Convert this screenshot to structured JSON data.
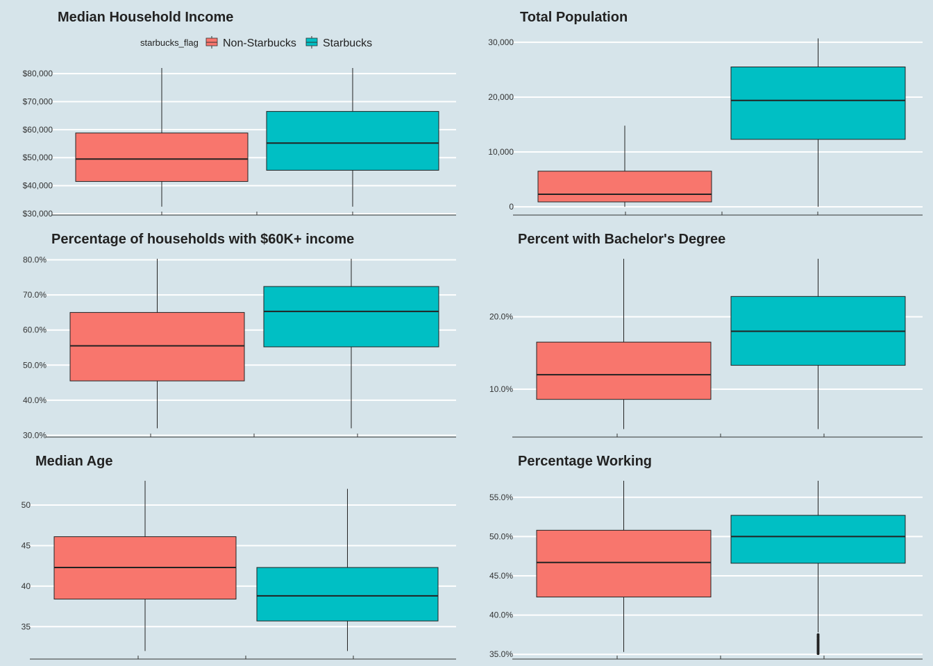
{
  "colors": {
    "non_starbucks": "#f8766d",
    "starbucks": "#00bfc4",
    "background": "#d6e4ea",
    "grid": "#ffffff"
  },
  "legend": {
    "title": "starbucks_flag",
    "entries": [
      {
        "label": "Non-Starbucks",
        "color": "#f8766d"
      },
      {
        "label": "Starbucks",
        "color": "#00bfc4"
      }
    ]
  },
  "chart_data": [
    {
      "type": "boxplot",
      "title": "Median Household Income",
      "legend": "top",
      "grid": true,
      "ylim": [
        29500,
        83000
      ],
      "ticks": [
        30000,
        40000,
        50000,
        60000,
        70000,
        80000
      ],
      "tick_labels": [
        "$30,000",
        "$40,000",
        "$50,000",
        "$60,000",
        "$70,000",
        "$80,000"
      ],
      "groups": [
        {
          "name": "Non-Starbucks",
          "whisker_low": 32500,
          "q1": 41500,
          "median": 49500,
          "q3": 58800,
          "whisker_high": 82000
        },
        {
          "name": "Starbucks",
          "whisker_low": 32500,
          "q1": 45500,
          "median": 55200,
          "q3": 66500,
          "whisker_high": 82000
        }
      ]
    },
    {
      "type": "boxplot",
      "title": "Total Population",
      "grid": true,
      "ylim": [
        -1500,
        31000
      ],
      "ticks": [
        0,
        10000,
        20000,
        30000
      ],
      "tick_labels": [
        "0",
        "10,000",
        "20,000",
        "30,000"
      ],
      "groups": [
        {
          "name": "Non-Starbucks",
          "whisker_low": 0,
          "q1": 900,
          "median": 2300,
          "q3": 6500,
          "whisker_high": 14800
        },
        {
          "name": "Starbucks",
          "whisker_low": 0,
          "q1": 12300,
          "median": 19400,
          "q3": 25500,
          "whisker_high": 30700
        }
      ]
    },
    {
      "type": "boxplot",
      "title": "Percentage of households with $60K+ income",
      "grid": true,
      "ylim": [
        29.5,
        80.3
      ],
      "ticks": [
        30,
        40,
        50,
        60,
        70,
        80
      ],
      "tick_labels": [
        "30.0%",
        "40.0%",
        "50.0%",
        "60.0%",
        "70.0%",
        "80.0%"
      ],
      "groups": [
        {
          "name": "Non-Starbucks",
          "whisker_low": 32,
          "q1": 45.5,
          "median": 55.5,
          "q3": 65,
          "whisker_high": 80.3
        },
        {
          "name": "Starbucks",
          "whisker_low": 32,
          "q1": 55.2,
          "median": 65.3,
          "q3": 72.4,
          "whisker_high": 80.3
        }
      ]
    },
    {
      "type": "boxplot",
      "title": "Percent with Bachelor's Degree",
      "grid": true,
      "ylim": [
        3.4,
        28
      ],
      "ticks": [
        10,
        20
      ],
      "tick_labels": [
        "10.0%",
        "20.0%"
      ],
      "groups": [
        {
          "name": "Non-Starbucks",
          "whisker_low": 4.5,
          "q1": 8.6,
          "median": 12,
          "q3": 16.5,
          "whisker_high": 28
        },
        {
          "name": "Starbucks",
          "whisker_low": 4.5,
          "q1": 13.3,
          "median": 18,
          "q3": 22.8,
          "whisker_high": 28
        }
      ]
    },
    {
      "type": "boxplot",
      "title": "Median Age",
      "grid": true,
      "ylim": [
        31,
        53
      ],
      "ticks": [
        35,
        40,
        45,
        50
      ],
      "tick_labels": [
        "35",
        "40",
        "45",
        "50"
      ],
      "groups": [
        {
          "name": "Non-Starbucks",
          "whisker_low": 32,
          "q1": 38.4,
          "median": 42.3,
          "q3": 46.1,
          "whisker_high": 53
        },
        {
          "name": "Starbucks",
          "whisker_low": 32,
          "q1": 35.7,
          "median": 38.8,
          "q3": 42.3,
          "whisker_high": 52
        }
      ]
    },
    {
      "type": "boxplot",
      "title": "Percentage Working",
      "grid": true,
      "ylim": [
        34.4,
        57.1
      ],
      "ticks": [
        35,
        40,
        45,
        50,
        55
      ],
      "tick_labels": [
        "35.0%",
        "40.0%",
        "45.0%",
        "50.0%",
        "55.0%"
      ],
      "groups": [
        {
          "name": "Non-Starbucks",
          "whisker_low": 35.3,
          "q1": 42.3,
          "median": 46.7,
          "q3": 50.8,
          "whisker_high": 57.1
        },
        {
          "name": "Starbucks",
          "whisker_low": 37.8,
          "q1": 46.6,
          "median": 50.0,
          "q3": 52.7,
          "whisker_high": 57.1,
          "outliers": [
            35.1,
            35.3,
            35.5,
            35.7,
            35.9,
            36.1,
            36.3,
            36.5,
            36.7,
            36.9,
            37.1,
            37.3,
            37.5
          ]
        }
      ]
    }
  ]
}
